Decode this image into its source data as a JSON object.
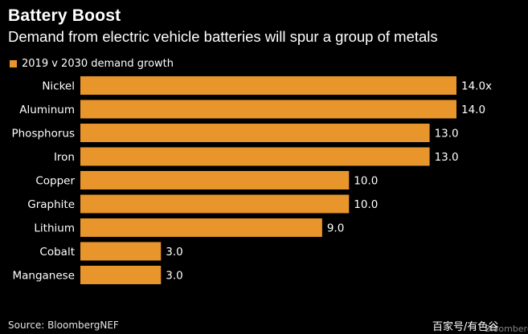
{
  "header": {
    "title": "Battery Boost",
    "subtitle": "Demand from electric vehicle batteries will spur a group of metals"
  },
  "legend": {
    "label": "2019 v 2030 demand growth"
  },
  "footer": {
    "source": "Source: BloombergNEF",
    "watermark": "百家号/有色谷",
    "watermark_logo": "Bloomberg"
  },
  "colors": {
    "bar": "#e8952c",
    "background": "#000000",
    "text": "#ffffff"
  },
  "chart_data": {
    "type": "bar",
    "orientation": "horizontal",
    "title": "Battery Boost",
    "subtitle": "Demand from electric vehicle batteries will spur a group of metals",
    "categories": [
      "Nickel",
      "Aluminum",
      "Phosphorus",
      "Iron",
      "Copper",
      "Graphite",
      "Lithium",
      "Cobalt",
      "Manganese"
    ],
    "series": [
      {
        "name": "2019 v 2030 demand growth",
        "values": [
          14.0,
          14.0,
          13.0,
          13.0,
          10.0,
          10.0,
          9.0,
          3.0,
          3.0
        ],
        "labels": [
          "14.0x",
          "14.0",
          "13.0",
          "13.0",
          "10.0",
          "10.0",
          "9.0",
          "3.0",
          "3.0"
        ]
      }
    ],
    "xlim": [
      0,
      14
    ],
    "grid": false,
    "legend_position": "top-left",
    "xlabel": "",
    "ylabel": ""
  }
}
